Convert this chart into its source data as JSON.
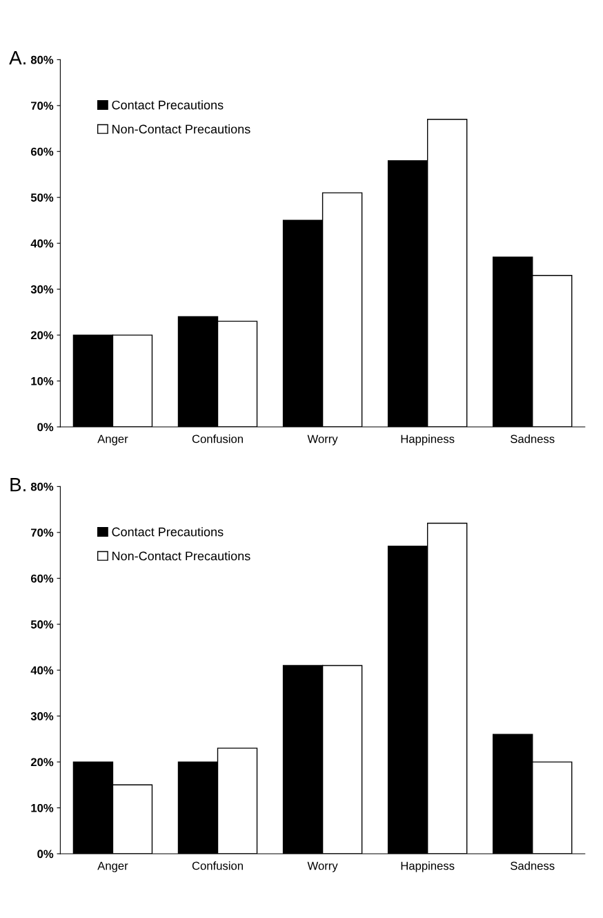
{
  "chart_data": [
    {
      "type": "bar",
      "title": "A.",
      "categories": [
        "Anger",
        "Confusion",
        "Worry",
        "Happiness",
        "Sadness"
      ],
      "series": [
        {
          "name": "Contact Precautions",
          "color": "#000000",
          "values": [
            20,
            24,
            45,
            58,
            37
          ]
        },
        {
          "name": "Non-Contact Precautions",
          "color": "#ffffff",
          "values": [
            20,
            23,
            51,
            67,
            33
          ]
        }
      ],
      "ylim": [
        0,
        80
      ],
      "yticks": [
        {
          "value": 0,
          "label": "0%"
        },
        {
          "value": 10,
          "label": "10%"
        },
        {
          "value": 20,
          "label": "20%"
        },
        {
          "value": 30,
          "label": "30%"
        },
        {
          "value": 40,
          "label": "40%"
        },
        {
          "value": 50,
          "label": "50%"
        },
        {
          "value": 60,
          "label": "60%"
        },
        {
          "value": 70,
          "label": "70%"
        },
        {
          "value": 80,
          "label": "80%"
        }
      ],
      "legend": "top left"
    },
    {
      "type": "bar",
      "title": "B.",
      "categories": [
        "Anger",
        "Confusion",
        "Worry",
        "Happiness",
        "Sadness"
      ],
      "series": [
        {
          "name": "Contact Precautions",
          "color": "#000000",
          "values": [
            20,
            20,
            41,
            67,
            26
          ]
        },
        {
          "name": "Non-Contact Precautions",
          "color": "#ffffff",
          "values": [
            15,
            23,
            41,
            72,
            20
          ]
        }
      ],
      "ylim": [
        0,
        80
      ],
      "yticks": [
        {
          "value": 0,
          "label": "0%"
        },
        {
          "value": 10,
          "label": "10%"
        },
        {
          "value": 20,
          "label": "20%"
        },
        {
          "value": 30,
          "label": "30%"
        },
        {
          "value": 40,
          "label": "40%"
        },
        {
          "value": 50,
          "label": "50%"
        },
        {
          "value": 60,
          "label": "60%"
        },
        {
          "value": 70,
          "label": "70%"
        },
        {
          "value": 80,
          "label": "80%"
        }
      ],
      "legend": "top left"
    }
  ]
}
